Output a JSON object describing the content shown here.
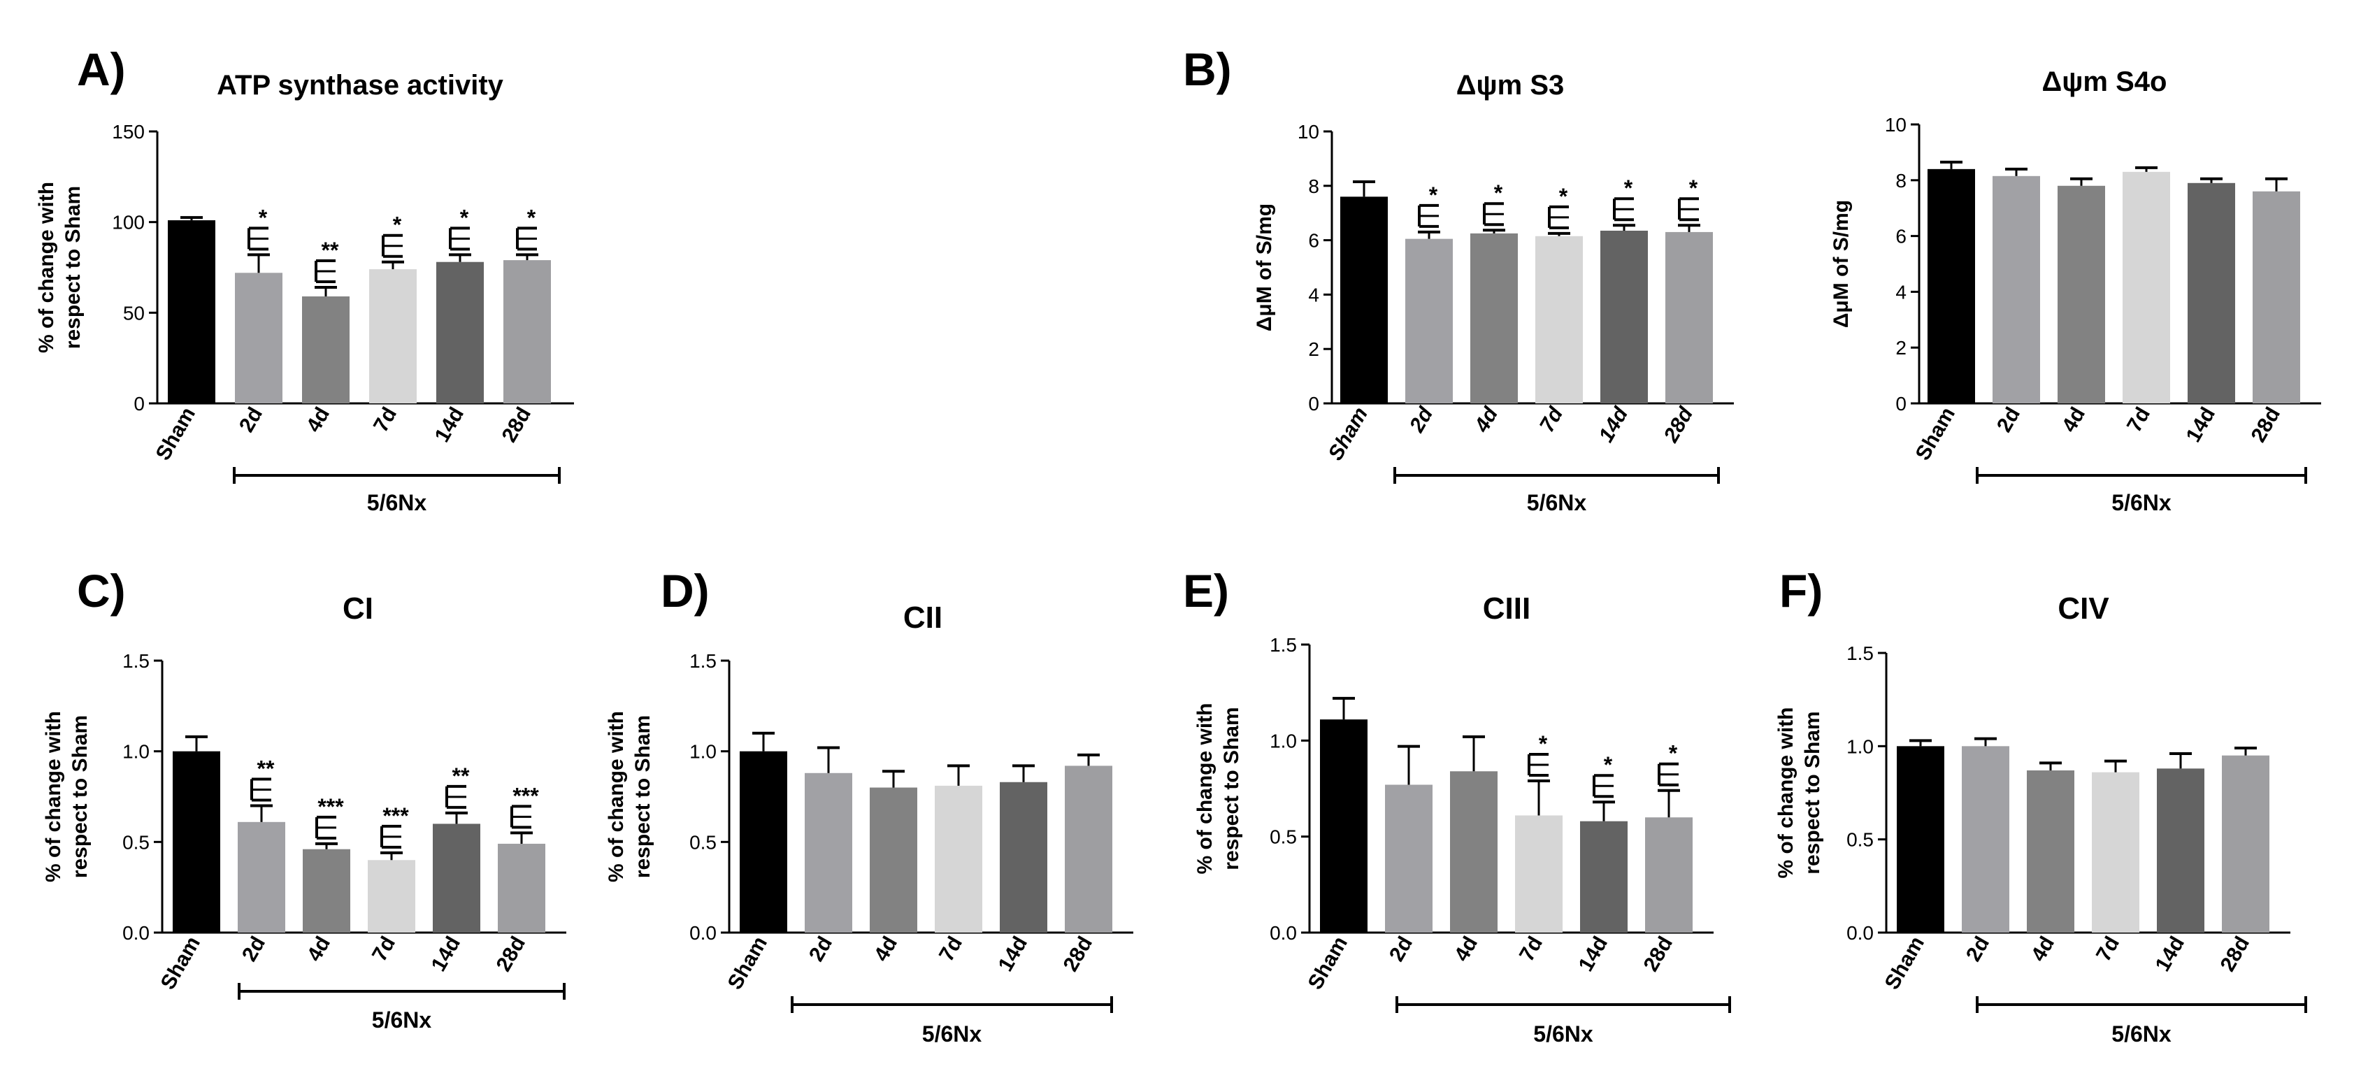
{
  "figure": {
    "colors": {
      "sham": "#000000",
      "d2": "#a1a1a5",
      "d4": "#828282",
      "d7": "#d6d6d6",
      "d14": "#636363",
      "d28": "#9e9ea1",
      "axis": "#000000"
    }
  },
  "chart_data": [
    {
      "panel_label": "A)",
      "type": "bar",
      "title": "ATP synthase activity",
      "ylabel_lines": [
        "% of change with",
        "respect to Sham"
      ],
      "categories": [
        "Sham",
        "2d",
        "4d",
        "7d",
        "14d",
        "28d"
      ],
      "tick_style": "bold",
      "values": [
        101,
        72,
        59,
        74,
        78,
        79
      ],
      "errors": [
        1.5,
        10,
        5,
        4,
        4,
        3
      ],
      "significance": [
        "",
        "*",
        "**",
        "*",
        "*",
        "*"
      ],
      "ylim": [
        0,
        150
      ],
      "yticks": [
        0,
        50,
        100,
        150
      ],
      "yticklabels": [
        "0",
        "50",
        "100",
        "150"
      ],
      "group_label": "5/6Nx"
    },
    {
      "panel_label": "B)",
      "type": "bar",
      "title": "Δψm S3",
      "ylabel_lines": [
        "ΔμM of S/mg"
      ],
      "categories": [
        "Sham",
        "2d",
        "4d",
        "7d",
        "14d",
        "28d"
      ],
      "tick_style": "bold-italic",
      "values": [
        7.6,
        6.05,
        6.25,
        6.15,
        6.35,
        6.3
      ],
      "errors": [
        0.55,
        0.25,
        0.12,
        0.1,
        0.2,
        0.25
      ],
      "significance": [
        "",
        "*",
        "*",
        "*",
        "*",
        "*"
      ],
      "ylim": [
        0,
        10
      ],
      "yticks": [
        0,
        2,
        4,
        6,
        8,
        10
      ],
      "yticklabels": [
        "0",
        "2",
        "4",
        "6",
        "8",
        "10"
      ],
      "group_label": "5/6Nx"
    },
    {
      "panel_label": "",
      "type": "bar",
      "title": "Δψm S4o",
      "ylabel_lines": [
        "ΔμM of S/mg"
      ],
      "categories": [
        "Sham",
        "2d",
        "4d",
        "7d",
        "14d",
        "28d"
      ],
      "tick_style": "bold",
      "values": [
        8.4,
        8.15,
        7.8,
        8.3,
        7.9,
        7.6
      ],
      "errors": [
        0.25,
        0.25,
        0.25,
        0.15,
        0.15,
        0.45
      ],
      "significance": [
        "",
        "",
        "",
        "",
        "",
        ""
      ],
      "ylim": [
        0,
        10
      ],
      "yticks": [
        0,
        2,
        4,
        6,
        8,
        10
      ],
      "yticklabels": [
        "0",
        "2",
        "4",
        "6",
        "8",
        "10"
      ],
      "group_label": "5/6Nx"
    },
    {
      "panel_label": "C)",
      "type": "bar",
      "title": "CI",
      "ylabel_lines": [
        "% of change with",
        "respect to Sham"
      ],
      "categories": [
        "Sham",
        "2d",
        "4d",
        "7d",
        "14d",
        "28d"
      ],
      "tick_style": "bold",
      "values": [
        1.0,
        0.61,
        0.46,
        0.4,
        0.6,
        0.49
      ],
      "errors": [
        0.08,
        0.09,
        0.03,
        0.04,
        0.06,
        0.06
      ],
      "significance": [
        "",
        "**",
        "***",
        "***",
        "**",
        "***"
      ],
      "ylim": [
        0,
        1.5
      ],
      "yticks": [
        0,
        0.5,
        1.0,
        1.5
      ],
      "yticklabels": [
        "0.0",
        "0.5",
        "1.0",
        "1.5"
      ],
      "group_label": "5/6Nx"
    },
    {
      "panel_label": "D)",
      "type": "bar",
      "title": "CII",
      "ylabel_lines": [
        "% of change with",
        "respect to Sham"
      ],
      "categories": [
        "Sham",
        "2d",
        "4d",
        "7d",
        "14d",
        "28d"
      ],
      "tick_style": "bold",
      "values": [
        1.0,
        0.88,
        0.8,
        0.81,
        0.83,
        0.92
      ],
      "errors": [
        0.1,
        0.14,
        0.09,
        0.11,
        0.09,
        0.06
      ],
      "significance": [
        "",
        "",
        "",
        "",
        "",
        ""
      ],
      "ylim": [
        0,
        1.5
      ],
      "yticks": [
        0,
        0.5,
        1.0,
        1.5
      ],
      "yticklabels": [
        "0.0",
        "0.5",
        "1.0",
        "1.5"
      ],
      "group_label": "5/6Nx"
    },
    {
      "panel_label": "E)",
      "type": "bar",
      "title": "CIII",
      "ylabel_lines": [
        "% of change with",
        "respect to Sham"
      ],
      "categories": [
        "Sham",
        "2d",
        "4d",
        "7d",
        "14d",
        "28d"
      ],
      "tick_style": "bold",
      "values": [
        1.11,
        0.77,
        0.84,
        0.61,
        0.58,
        0.6
      ],
      "errors": [
        0.11,
        0.2,
        0.18,
        0.18,
        0.1,
        0.14
      ],
      "significance": [
        "",
        "",
        "",
        "*",
        "*",
        "*"
      ],
      "ylim": [
        0,
        1.5
      ],
      "yticks": [
        0,
        0.5,
        1.0,
        1.5
      ],
      "yticklabels": [
        "0.0",
        "0.5",
        "1.0",
        "1.5"
      ],
      "group_label": "5/6Nx"
    },
    {
      "panel_label": "F)",
      "type": "bar",
      "title": "CIV",
      "ylabel_lines": [
        "% of change with",
        "respect to Sham"
      ],
      "categories": [
        "Sham",
        "2d",
        "4d",
        "7d",
        "14d",
        "28d"
      ],
      "tick_style": "bold",
      "values": [
        1.0,
        1.0,
        0.87,
        0.86,
        0.88,
        0.95
      ],
      "errors": [
        0.03,
        0.04,
        0.04,
        0.06,
        0.08,
        0.04
      ],
      "significance": [
        "",
        "",
        "",
        "",
        "",
        ""
      ],
      "ylim": [
        0,
        1.5
      ],
      "yticks": [
        0,
        0.5,
        1.0,
        1.5
      ],
      "yticklabels": [
        "0.0",
        "0.5",
        "1.0",
        "1.5"
      ],
      "group_label": "5/6Nx"
    }
  ]
}
